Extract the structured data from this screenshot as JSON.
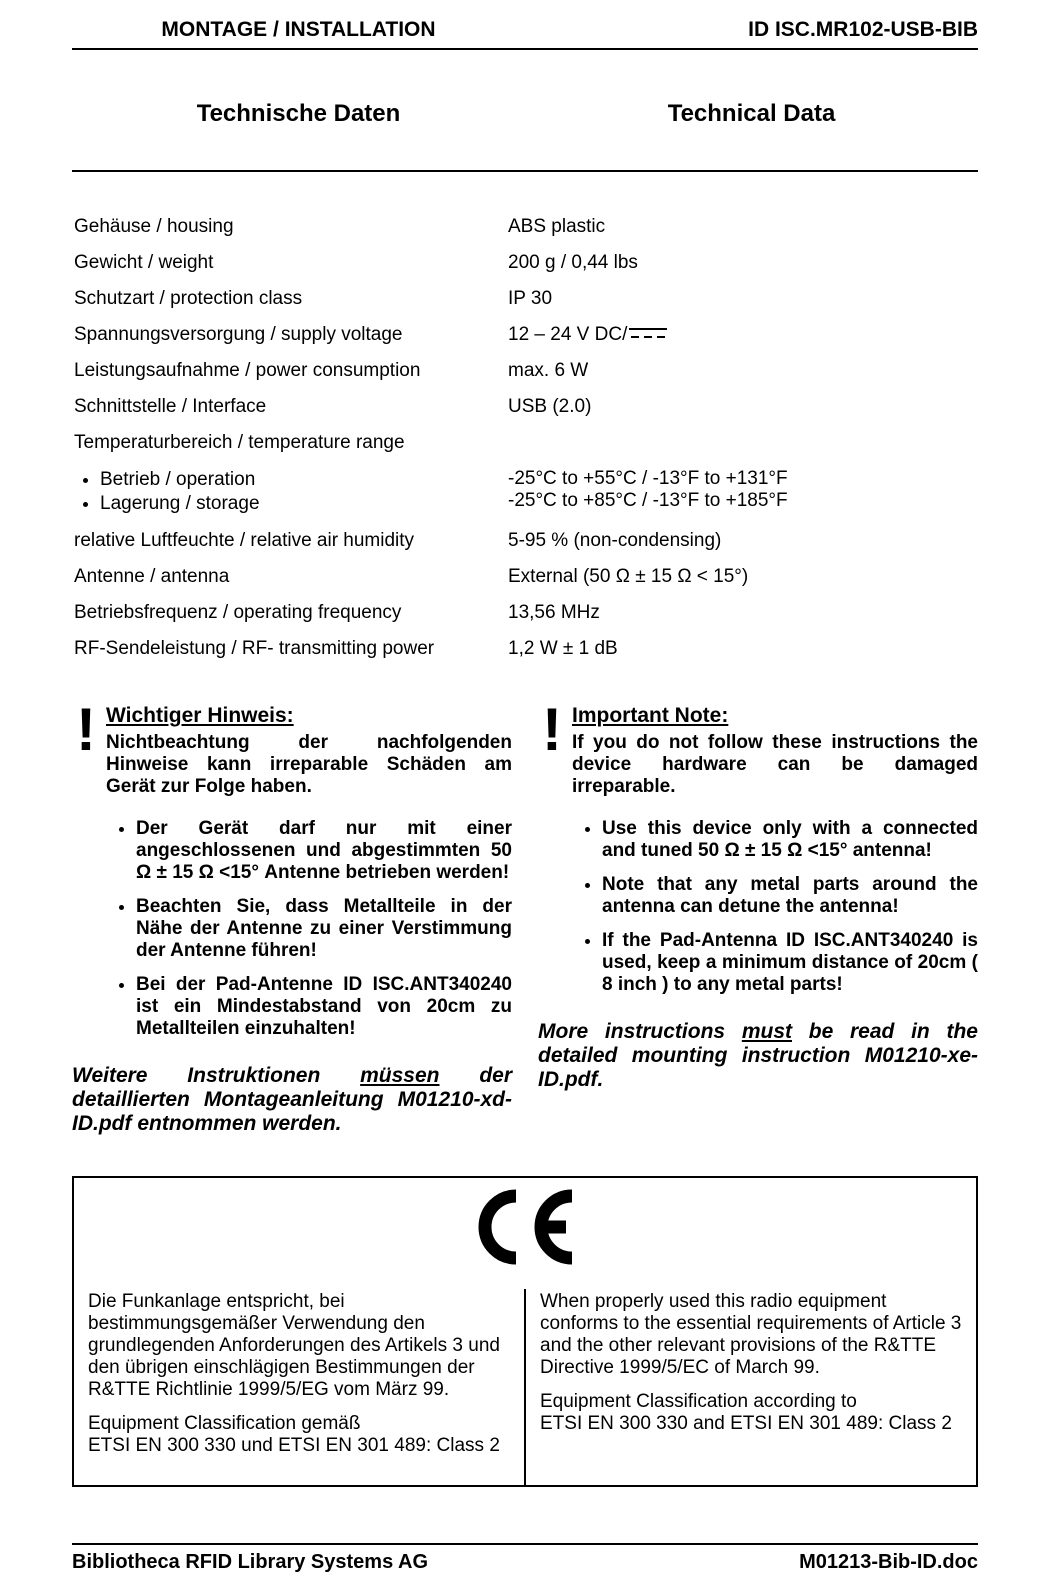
{
  "header": {
    "center": "MONTAGE / INSTALLATION",
    "right": "ID ISC.MR102-USB-BIB"
  },
  "section_heads": {
    "de": "Technische Daten",
    "en": "Technical Data"
  },
  "specs": [
    {
      "label": "Gehäuse / housing",
      "value": "ABS plastic"
    },
    {
      "label": "Gewicht / weight",
      "value": "200 g / 0,44 lbs"
    },
    {
      "label": "Schutzart / protection class",
      "value": "IP 30"
    },
    {
      "label": "Spannungsversorgung / supply voltage",
      "value": "12 – 24 V DC/",
      "dc_symbol": true
    },
    {
      "label": "Leistungsaufnahme / power consumption",
      "value": "max. 6 W"
    },
    {
      "label": "Schnittstelle / Interface",
      "value": "USB (2.0)"
    }
  ],
  "temp_range_label": "Temperaturbereich / temperature range",
  "temp_sub": [
    {
      "label": "Betrieb / operation",
      "value": "-25°C to +55°C / -13°F to +131°F"
    },
    {
      "label": "Lagerung / storage",
      "value": "-25°C to +85°C / -13°F to +185°F"
    }
  ],
  "specs2": [
    {
      "label": "relative Luftfeuchte / relative air humidity",
      "value": "5-95 %  (non-condensing)"
    },
    {
      "label": "Antenne / antenna",
      "value": "External (50 Ω ± 15 Ω < 15°)"
    },
    {
      "label": "Betriebsfrequenz / operating frequency",
      "value": "13,56 MHz"
    },
    {
      "label": "RF-Sendeleistung / RF- transmitting power",
      "value": "1,2 W ± 1 dB"
    }
  ],
  "note_de": {
    "title": "Wichtiger Hinweis:",
    "intro": "Nichtbeachtung der nachfolgenden Hinweise kann irreparable Schäden am Gerät zur Folge haben.",
    "bullets": [
      "Der Gerät darf nur mit einer angeschlossenen und abgestimmten 50 Ω ± 15 Ω <15° Antenne betrieben werden!",
      "Beachten Sie, dass Metallteile in der Nähe der Antenne zu einer Verstimmung der Antenne führen!",
      "Bei der Pad-Antenne ID ISC.ANT340240 ist ein Mindestabstand von 20cm zu Metallteilen einzuhalten!"
    ],
    "further_pre": "Weitere Instruktionen ",
    "further_u": "müssen",
    "further_post": " der detaillierten Montageanleitung M01210-xd-ID.pdf entnommen werden."
  },
  "note_en": {
    "title": "Important Note:",
    "intro": "If you do not follow these instructions the device hardware can be damaged irreparable.",
    "bullets": [
      "Use this device only with a connected and tuned 50 Ω ± 15 Ω <15°  antenna!",
      "Note that any metal parts around the antenna can detune the antenna!",
      "If the Pad-Antenna ID ISC.ANT340240 is used, keep a minimum distance of 20cm ( 8 inch ) to any metal parts!"
    ],
    "further_pre": "More instructions ",
    "further_u": "must",
    "further_post": " be read in the detailed mounting instruction M01210-xe-ID.pdf."
  },
  "ce": {
    "de_p1": "Die Funkanlage entspricht, bei bestimmungsgemäßer Verwendung den grundlegenden Anforderungen des Artikels 3 und den übrigen einschlägigen Bestimmungen der R&TTE Richtlinie 1999/5/EG vom März 99.",
    "de_p2": "Equipment Classification gemäß\nETSI EN 300 330 und ETSI EN 301 489: Class 2",
    "en_p1": "When properly used this radio equipment conforms to the essential requirements of Article 3 and the other relevant provisions of the R&TTE Directive 1999/5/EC of March 99.",
    "en_p2": "Equipment Classification according to\nETSI EN 300 330 and ETSI EN 301 489: Class 2"
  },
  "footer": {
    "left": "Bibliotheca RFID Library Systems AG",
    "right": "M01213-Bib-ID.doc"
  },
  "colors": {
    "text": "#000000",
    "rule": "#000000",
    "background": "#ffffff"
  }
}
